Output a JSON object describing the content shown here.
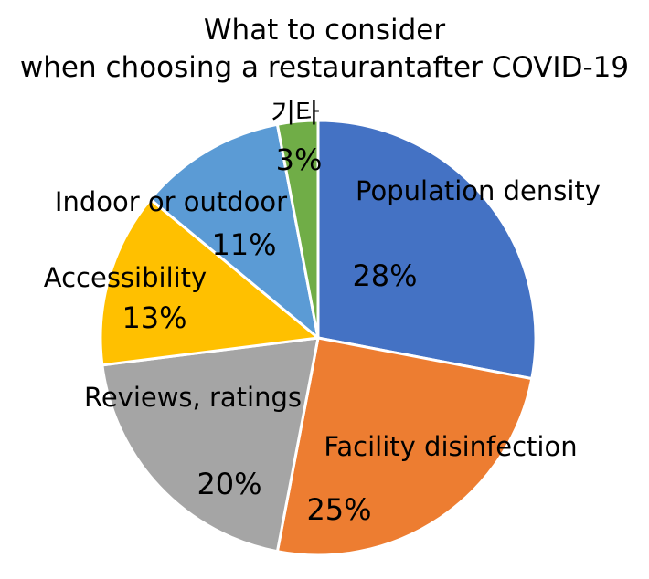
{
  "chart_data": {
    "type": "pie",
    "title_lines": [
      "What to consider",
      "when choosing a restaurantafter COVID-19"
    ],
    "value_suffix": "%",
    "slices": [
      {
        "label": "Population density",
        "value": 28,
        "color": "#4472C4"
      },
      {
        "label": "Facility disinfection",
        "value": 25,
        "color": "#ED7D31"
      },
      {
        "label": "Reviews, ratings",
        "value": 20,
        "color": "#A5A5A5"
      },
      {
        "label": "Accessibility",
        "value": 13,
        "color": "#FFC000"
      },
      {
        "label": "Indoor or outdoor",
        "value": 11,
        "color": "#5B9BD5"
      },
      {
        "label": "기타",
        "value": 3,
        "color": "#70AD47"
      }
    ],
    "start_angle_degrees": 0,
    "direction": "clockwise",
    "legend": "none",
    "labels_inside": true
  }
}
